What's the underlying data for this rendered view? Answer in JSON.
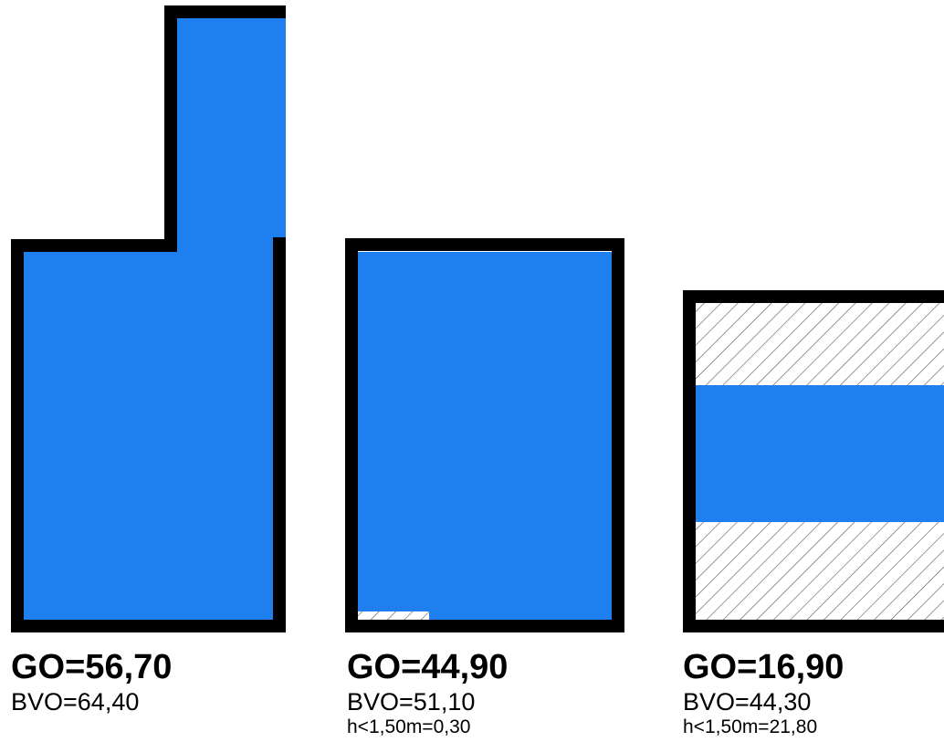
{
  "colors": {
    "fill": "#207fef",
    "wall": "#000000",
    "hatch_line": "#555555",
    "background": "#ffffff"
  },
  "rooms": [
    {
      "go": "GO=56,70",
      "bvo": "BVO=64,40",
      "h150": ""
    },
    {
      "go": "GO=44,90",
      "bvo": "BVO=51,10",
      "h150": "h<1,50m=0,30"
    },
    {
      "go": "GO=16,90",
      "bvo": "BVO=44,30",
      "h150": "h<1,50m=21,80"
    }
  ]
}
